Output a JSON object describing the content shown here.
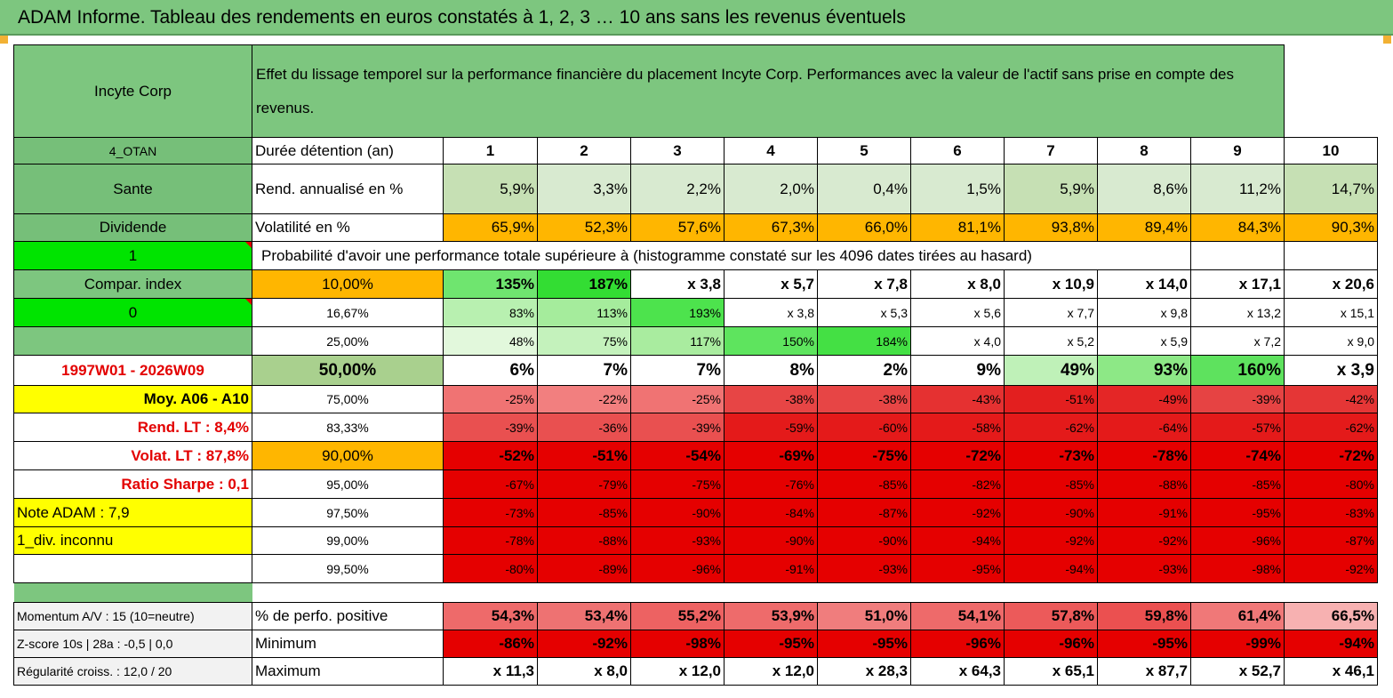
{
  "title": "ADAM Informe. Tableau des rendements en euros constatés à 1, 2, 3 … 10 ans sans les revenus éventuels",
  "header": {
    "asset": "Incyte Corp",
    "description": "Effet du lissage temporel sur la performance financière du placement Incyte Corp. Performances avec la valeur de l'actif sans prise en compte des revenus."
  },
  "rows": {
    "duration": {
      "side": "4_OTAN",
      "label": "Durée détention (an)",
      "values": [
        "1",
        "2",
        "3",
        "4",
        "5",
        "6",
        "7",
        "8",
        "9",
        "10"
      ]
    },
    "rend": {
      "side": "Sante",
      "label": "Rend. annualisé en %",
      "values": [
        "5,9%",
        "3,3%",
        "2,2%",
        "2,0%",
        "0,4%",
        "1,5%",
        "5,9%",
        "8,6%",
        "11,2%",
        "14,7%"
      ]
    },
    "vol": {
      "side": "Dividende",
      "label": "Volatilité en %",
      "values": [
        "65,9%",
        "52,3%",
        "57,6%",
        "67,3%",
        "66,0%",
        "81,1%",
        "93,8%",
        "89,4%",
        "84,3%",
        "90,3%"
      ]
    },
    "prob": {
      "side": "1",
      "label": "Probabilité d'avoir une performance totale supérieure à (histogramme constaté sur les 4096 dates tirées au hasard)"
    }
  },
  "probs": [
    {
      "side": "Compar. index",
      "pct": "10,00%",
      "values": [
        "135%",
        "187%",
        "x 3,8",
        "x 5,7",
        "x 7,8",
        "x 8,0",
        "x 10,9",
        "x 14,0",
        "x 17,1",
        "x 20,6"
      ]
    },
    {
      "side": "0",
      "pct": "16,67%",
      "values": [
        "83%",
        "113%",
        "193%",
        "x 3,8",
        "x 5,3",
        "x 5,6",
        "x 7,7",
        "x 9,8",
        "x 13,2",
        "x 15,1"
      ]
    },
    {
      "side": "",
      "pct": "25,00%",
      "values": [
        "48%",
        "75%",
        "117%",
        "150%",
        "184%",
        "x 4,0",
        "x 5,2",
        "x 5,9",
        "x 7,2",
        "x 9,0"
      ]
    },
    {
      "side": "1997W01 - 2026W09",
      "pct": "50,00%",
      "values": [
        "6%",
        "7%",
        "7%",
        "8%",
        "2%",
        "9%",
        "49%",
        "93%",
        "160%",
        "x 3,9"
      ]
    },
    {
      "side": "Moy. A06 - A10",
      "pct": "75,00%",
      "values": [
        "-25%",
        "-22%",
        "-25%",
        "-38%",
        "-38%",
        "-43%",
        "-51%",
        "-49%",
        "-39%",
        "-42%"
      ]
    },
    {
      "side": "Rend. LT :   8,4%",
      "pct": "83,33%",
      "values": [
        "-39%",
        "-36%",
        "-39%",
        "-59%",
        "-60%",
        "-58%",
        "-62%",
        "-64%",
        "-57%",
        "-62%"
      ]
    },
    {
      "side": "Volat. LT :   87,8%",
      "pct": "90,00%",
      "values": [
        "-52%",
        "-51%",
        "-54%",
        "-69%",
        "-75%",
        "-72%",
        "-73%",
        "-78%",
        "-74%",
        "-72%"
      ]
    },
    {
      "side": "Ratio Sharpe :    0,1",
      "pct": "95,00%",
      "values": [
        "-67%",
        "-79%",
        "-75%",
        "-76%",
        "-85%",
        "-82%",
        "-85%",
        "-88%",
        "-85%",
        "-80%"
      ]
    },
    {
      "side": "Note ADAM : 7,9",
      "pct": "97,50%",
      "values": [
        "-73%",
        "-85%",
        "-90%",
        "-84%",
        "-87%",
        "-92%",
        "-90%",
        "-91%",
        "-95%",
        "-83%"
      ]
    },
    {
      "side": "1_div. inconnu",
      "pct": "99,00%",
      "values": [
        "-78%",
        "-88%",
        "-93%",
        "-90%",
        "-90%",
        "-94%",
        "-92%",
        "-92%",
        "-96%",
        "-87%"
      ]
    },
    {
      "side": "",
      "pct": "99,50%",
      "values": [
        "-80%",
        "-89%",
        "-96%",
        "-91%",
        "-93%",
        "-95%",
        "-94%",
        "-93%",
        "-98%",
        "-92%"
      ]
    }
  ],
  "stats": [
    {
      "side": "Momentum A/V : 15 (10=neutre)",
      "label": "% de perfo. positive",
      "values": [
        "54,3%",
        "53,4%",
        "55,2%",
        "53,9%",
        "51,0%",
        "54,1%",
        "57,8%",
        "59,8%",
        "61,4%",
        "66,5%"
      ]
    },
    {
      "side": "Z-score 10s | 28a : -0,5 | 0,0",
      "label": "Minimum",
      "values": [
        "-86%",
        "-92%",
        "-98%",
        "-95%",
        "-95%",
        "-96%",
        "-96%",
        "-95%",
        "-99%",
        "-94%"
      ]
    },
    {
      "side": "Régularité croiss. : 12,0 / 20",
      "label": "Maximum",
      "values": [
        "x 11,3",
        "x 8,0",
        "x 12,0",
        "x 12,0",
        "x 28,3",
        "x 64,3",
        "x 65,1",
        "x 87,7",
        "x 52,7",
        "x 46,1"
      ]
    }
  ],
  "colors": {
    "header_green": "#7dc67f",
    "light_green": "#c9e2b4",
    "orange": "#ffb600",
    "bright_green": "#00e400",
    "yellow": "#ffff00",
    "red_text": "#e30000"
  }
}
